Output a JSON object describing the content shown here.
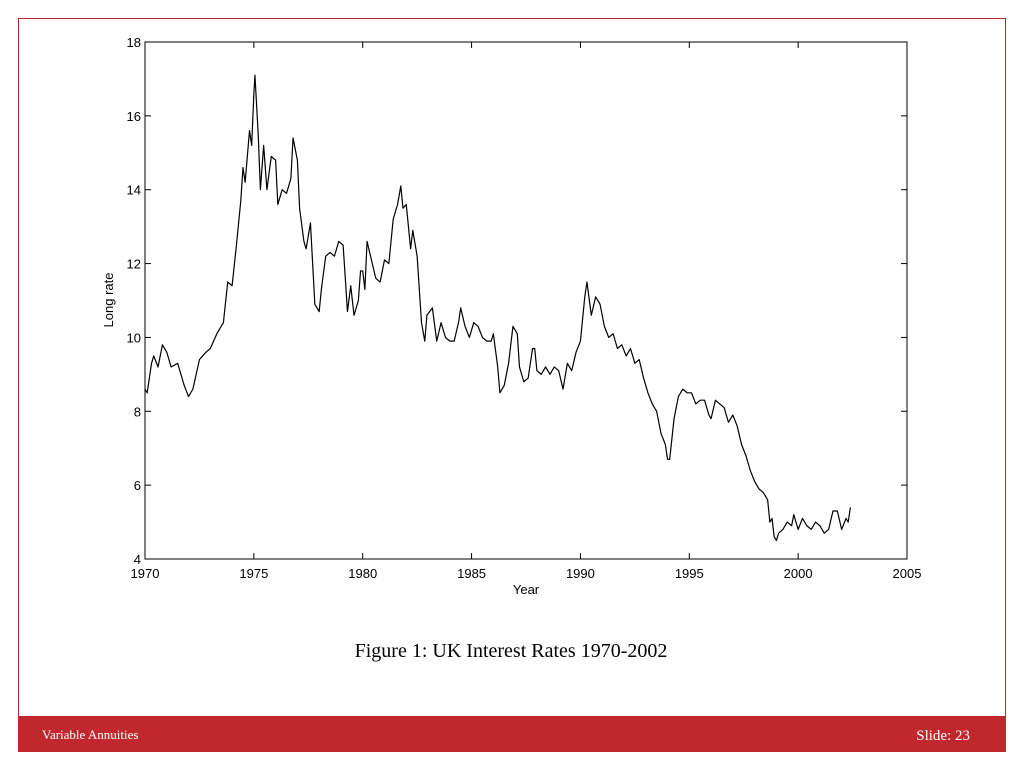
{
  "chart_data": {
    "type": "line",
    "xlabel": "Year",
    "ylabel": "Long rate",
    "xlim": [
      1970,
      2005
    ],
    "xticks": [
      1970,
      1975,
      1980,
      1985,
      1990,
      1995,
      2000,
      2005
    ],
    "ylim": [
      4,
      18
    ],
    "yticks": [
      4,
      6,
      8,
      10,
      12,
      14,
      16,
      18
    ],
    "series": [
      {
        "color": "#000000",
        "x": [
          1970.0,
          1970.1,
          1970.3,
          1970.4,
          1970.6,
          1970.8,
          1971.0,
          1971.2,
          1971.5,
          1971.8,
          1972.0,
          1972.2,
          1972.5,
          1972.8,
          1973.0,
          1973.3,
          1973.6,
          1973.8,
          1974.0,
          1974.2,
          1974.4,
          1974.5,
          1974.6,
          1974.8,
          1974.9,
          1975.0,
          1975.05,
          1975.2,
          1975.3,
          1975.45,
          1975.6,
          1975.8,
          1976.0,
          1976.1,
          1976.3,
          1976.5,
          1976.7,
          1976.8,
          1977.0,
          1977.1,
          1977.3,
          1977.4,
          1977.6,
          1977.7,
          1977.8,
          1978.0,
          1978.1,
          1978.3,
          1978.5,
          1978.7,
          1978.9,
          1979.1,
          1979.3,
          1979.45,
          1979.6,
          1979.8,
          1979.9,
          1980.0,
          1980.1,
          1980.2,
          1980.4,
          1980.6,
          1980.8,
          1981.0,
          1981.2,
          1981.4,
          1981.6,
          1981.75,
          1981.85,
          1982.0,
          1982.2,
          1982.3,
          1982.5,
          1982.7,
          1982.85,
          1982.95,
          1983.2,
          1983.4,
          1983.6,
          1983.8,
          1984.0,
          1984.2,
          1984.4,
          1984.5,
          1984.7,
          1984.9,
          1985.1,
          1985.3,
          1985.5,
          1985.7,
          1985.9,
          1986.0,
          1986.2,
          1986.3,
          1986.5,
          1986.7,
          1986.9,
          1987.1,
          1987.2,
          1987.4,
          1987.6,
          1987.8,
          1987.9,
          1988.0,
          1988.2,
          1988.4,
          1988.6,
          1988.8,
          1989.0,
          1989.2,
          1989.4,
          1989.6,
          1989.8,
          1990.0,
          1990.2,
          1990.3,
          1990.5,
          1990.7,
          1990.9,
          1991.1,
          1991.3,
          1991.5,
          1991.7,
          1991.9,
          1992.1,
          1992.3,
          1992.5,
          1992.7,
          1992.9,
          1993.1,
          1993.3,
          1993.5,
          1993.7,
          1993.9,
          1994.0,
          1994.1,
          1994.3,
          1994.5,
          1994.7,
          1994.9,
          1995.1,
          1995.3,
          1995.5,
          1995.7,
          1995.9,
          1996.0,
          1996.2,
          1996.4,
          1996.6,
          1996.8,
          1997.0,
          1997.2,
          1997.4,
          1997.6,
          1997.8,
          1998.0,
          1998.2,
          1998.4,
          1998.6,
          1998.7,
          1998.8,
          1998.9,
          1999.0,
          1999.1,
          1999.3,
          1999.5,
          1999.7,
          1999.8,
          2000.0,
          2000.2,
          2000.4,
          2000.6,
          2000.8,
          2001.0,
          2001.2,
          2001.4,
          2001.6,
          2001.8,
          2002.0,
          2002.2,
          2002.3,
          2002.4
        ],
        "values": [
          8.6,
          8.5,
          9.3,
          9.5,
          9.2,
          9.8,
          9.6,
          9.2,
          9.3,
          8.7,
          8.4,
          8.6,
          9.4,
          9.6,
          9.7,
          10.1,
          10.4,
          11.5,
          11.4,
          12.5,
          13.7,
          14.6,
          14.2,
          15.6,
          15.2,
          16.6,
          17.1,
          15.5,
          14.0,
          15.2,
          14.0,
          14.9,
          14.8,
          13.6,
          14.0,
          13.9,
          14.3,
          15.4,
          14.8,
          13.5,
          12.6,
          12.4,
          13.1,
          12.0,
          10.9,
          10.7,
          11.3,
          12.2,
          12.3,
          12.2,
          12.6,
          12.5,
          10.7,
          11.4,
          10.6,
          11.0,
          11.8,
          11.8,
          11.3,
          12.6,
          12.1,
          11.6,
          11.5,
          12.1,
          12.0,
          13.2,
          13.6,
          14.1,
          13.5,
          13.6,
          12.4,
          12.9,
          12.2,
          10.4,
          9.9,
          10.6,
          10.8,
          9.9,
          10.4,
          10.0,
          9.9,
          9.9,
          10.4,
          10.8,
          10.3,
          10.0,
          10.4,
          10.3,
          10.0,
          9.9,
          9.9,
          10.1,
          9.2,
          8.5,
          8.7,
          9.3,
          10.3,
          10.1,
          9.2,
          8.8,
          8.9,
          9.7,
          9.7,
          9.1,
          9.0,
          9.2,
          9.0,
          9.2,
          9.1,
          8.6,
          9.3,
          9.1,
          9.6,
          9.9,
          11.1,
          11.5,
          10.6,
          11.1,
          10.9,
          10.3,
          10.0,
          10.1,
          9.7,
          9.8,
          9.5,
          9.7,
          9.3,
          9.4,
          8.9,
          8.5,
          8.2,
          8.0,
          7.4,
          7.1,
          6.7,
          6.7,
          7.8,
          8.4,
          8.6,
          8.5,
          8.5,
          8.2,
          8.3,
          8.3,
          7.9,
          7.8,
          8.3,
          8.2,
          8.1,
          7.7,
          7.9,
          7.6,
          7.1,
          6.8,
          6.4,
          6.1,
          5.9,
          5.8,
          5.6,
          5.0,
          5.1,
          4.6,
          4.5,
          4.7,
          4.8,
          5.0,
          4.9,
          5.2,
          4.8,
          5.1,
          4.9,
          4.8,
          5.0,
          4.9,
          4.7,
          4.8,
          5.3,
          5.3,
          4.8,
          5.1,
          5.0,
          5.4
        ]
      }
    ]
  },
  "caption": "Figure 1: UK Interest Rates 1970-2002",
  "footer": {
    "left": "Variable Annuities",
    "right": "Slide: 23"
  }
}
